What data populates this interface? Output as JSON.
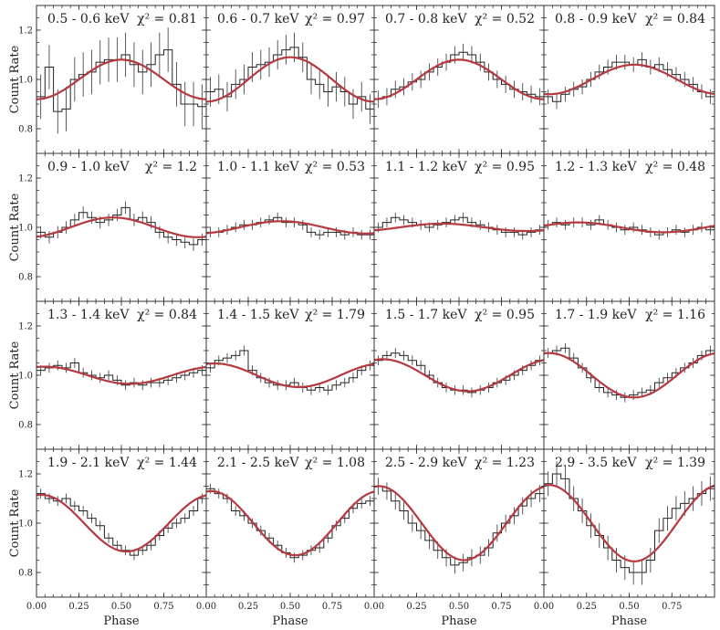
{
  "chart_data": {
    "type": "line",
    "layout": "4x4 grid of panels",
    "xlabel": "Phase",
    "ylabel": "Count Rate",
    "xlim": [
      0,
      1
    ],
    "ylim": [
      0.7,
      1.3
    ],
    "xticks": [
      0.0,
      0.25,
      0.5,
      0.75
    ],
    "xtick_labels": [
      "0.00",
      "0.25",
      "0.50",
      "0.75"
    ],
    "yticks": [
      0.8,
      1.0,
      1.2
    ],
    "ytick_labels": [
      "0.8",
      "1.0",
      "1.2"
    ],
    "colors": {
      "data": "#222222",
      "model": "#b5393f"
    },
    "bins": 20,
    "panels": [
      {
        "label": "0.5 - 0.6 keV",
        "chi": "χ² = 0.81",
        "model": {
          "mean": 1.0,
          "amp": 0.08,
          "phase_peak": 0.5
        },
        "err": 0.09,
        "values": [
          0.93,
          1.05,
          0.87,
          0.88,
          1.0,
          1.02,
          1.03,
          1.07,
          1.08,
          1.08,
          1.1,
          1.06,
          1.03,
          1.06,
          1.1,
          1.12,
          0.98,
          0.9,
          0.9,
          0.89
        ]
      },
      {
        "label": "0.6 - 0.7 keV",
        "chi": "χ² = 0.97",
        "model": {
          "mean": 1.0,
          "amp": 0.09,
          "phase_peak": 0.5
        },
        "err": 0.06,
        "values": [
          0.95,
          0.96,
          0.93,
          0.98,
          1.0,
          1.05,
          1.06,
          1.07,
          1.1,
          1.12,
          1.13,
          1.09,
          1.0,
          0.98,
          0.95,
          0.97,
          0.95,
          0.9,
          0.93,
          0.88
        ]
      },
      {
        "label": "0.7 - 0.8 keV",
        "chi": "χ² = 0.52",
        "model": {
          "mean": 1.0,
          "amp": 0.08,
          "phase_peak": 0.5
        },
        "err": 0.035,
        "values": [
          0.92,
          0.93,
          0.96,
          0.97,
          0.99,
          1.0,
          1.03,
          1.05,
          1.07,
          1.1,
          1.11,
          1.1,
          1.07,
          1.03,
          1.0,
          0.98,
          0.96,
          0.95,
          0.94,
          0.93
        ]
      },
      {
        "label": "0.8 - 0.9 keV",
        "chi": "χ² = 0.84",
        "model": {
          "mean": 1.0,
          "amp": 0.06,
          "phase_peak": 0.53
        },
        "err": 0.03,
        "values": [
          0.93,
          0.91,
          0.94,
          0.96,
          0.97,
          1.0,
          1.03,
          1.05,
          1.07,
          1.07,
          1.06,
          1.08,
          1.05,
          1.06,
          1.04,
          1.02,
          1.0,
          0.98,
          0.95,
          0.93
        ]
      },
      {
        "label": "0.9 - 1.0 keV",
        "chi": "χ² = 1.2",
        "model": {
          "mean": 1.0,
          "amp": 0.04,
          "phase_peak": 0.45
        },
        "err": 0.025,
        "values": [
          0.98,
          0.96,
          0.98,
          1.0,
          1.03,
          1.06,
          1.04,
          1.02,
          1.03,
          1.05,
          1.08,
          1.03,
          1.04,
          1.02,
          0.98,
          0.96,
          0.95,
          0.94,
          0.93,
          0.95
        ]
      },
      {
        "label": "1.0 - 1.1 keV",
        "chi": "χ² = 0.53",
        "model": {
          "mean": 1.0,
          "amp": 0.025,
          "phase_peak": 0.45
        },
        "err": 0.02,
        "values": [
          0.98,
          0.98,
          0.99,
          1.0,
          1.01,
          1.01,
          1.02,
          1.03,
          1.04,
          1.02,
          1.02,
          1.01,
          0.98,
          0.97,
          0.98,
          0.98,
          0.97,
          0.98,
          0.97,
          0.97
        ]
      },
      {
        "label": "1.1 - 1.2 keV",
        "chi": "χ² = 0.95",
        "model": {
          "mean": 1.0,
          "amp": 0.015,
          "phase_peak": 0.4
        },
        "err": 0.02,
        "values": [
          1.0,
          1.02,
          1.04,
          1.03,
          1.02,
          1.01,
          1.0,
          1.01,
          1.02,
          1.03,
          1.04,
          1.02,
          1.01,
          1.0,
          0.99,
          0.98,
          0.98,
          0.97,
          0.98,
          0.99
        ]
      },
      {
        "label": "1.2 - 1.3 keV",
        "chi": "χ² = 0.48",
        "model": {
          "mean": 1.0,
          "amp": 0.02,
          "phase_peak": 0.2
        },
        "err": 0.02,
        "values": [
          1.01,
          1.02,
          1.01,
          1.02,
          1.02,
          1.01,
          1.03,
          1.01,
          1.0,
          0.99,
          1.0,
          0.99,
          0.98,
          0.97,
          0.98,
          0.99,
          0.98,
          0.99,
          1.0,
          0.99
        ]
      },
      {
        "label": "1.3 - 1.4 keV",
        "chi": "χ² = 0.84",
        "model": {
          "mean": 1.0,
          "amp": 0.035,
          "phase_peak": 0.05
        },
        "err": 0.02,
        "values": [
          1.02,
          1.03,
          1.04,
          1.03,
          1.05,
          1.01,
          1.0,
          0.99,
          1.0,
          0.98,
          0.96,
          0.97,
          0.96,
          0.97,
          0.97,
          0.98,
          0.99,
          1.0,
          1.01,
          1.02
        ]
      },
      {
        "label": "1.4 - 1.5 keV",
        "chi": "χ² = 1.79",
        "model": {
          "mean": 1.0,
          "amp": 0.048,
          "phase_peak": 0.05
        },
        "err": 0.02,
        "values": [
          1.03,
          1.06,
          1.07,
          1.08,
          1.1,
          1.02,
          0.99,
          0.97,
          0.96,
          0.96,
          0.97,
          0.95,
          0.94,
          0.95,
          0.94,
          0.96,
          0.97,
          0.99,
          1.02,
          1.04
        ]
      },
      {
        "label": "1.5 - 1.7 keV",
        "chi": "χ² = 0.95",
        "model": {
          "mean": 1.0,
          "amp": 0.065,
          "phase_peak": 0.05
        },
        "err": 0.02,
        "values": [
          1.06,
          1.08,
          1.09,
          1.08,
          1.06,
          1.04,
          1.0,
          0.97,
          0.95,
          0.94,
          0.94,
          0.93,
          0.94,
          0.95,
          0.97,
          0.98,
          1.0,
          1.02,
          1.04,
          1.06
        ]
      },
      {
        "label": "1.7 - 1.9 keV",
        "chi": "χ² = 1.16",
        "model": {
          "mean": 1.0,
          "amp": 0.09,
          "phase_peak": 0.03
        },
        "err": 0.02,
        "values": [
          1.09,
          1.1,
          1.11,
          1.07,
          1.03,
          0.99,
          0.95,
          0.93,
          0.92,
          0.91,
          0.92,
          0.93,
          0.94,
          0.97,
          0.99,
          1.01,
          1.03,
          1.05,
          1.08,
          1.1
        ]
      },
      {
        "label": "1.9 - 2.1 keV",
        "chi": "χ² = 1.44",
        "model": {
          "mean": 1.0,
          "amp": 0.115,
          "phase_peak": 0.03
        },
        "err": 0.02,
        "values": [
          1.12,
          1.1,
          1.09,
          1.1,
          1.07,
          1.05,
          1.02,
          0.99,
          0.94,
          0.91,
          0.89,
          0.87,
          0.89,
          0.91,
          0.95,
          0.98,
          1.0,
          1.02,
          1.05,
          1.1
        ]
      },
      {
        "label": "2.1 - 2.5 keV",
        "chi": "χ² = 1.08",
        "model": {
          "mean": 1.0,
          "amp": 0.13,
          "phase_peak": 0.03
        },
        "err": 0.02,
        "values": [
          1.14,
          1.12,
          1.1,
          1.05,
          1.03,
          1.0,
          0.97,
          0.94,
          0.91,
          0.88,
          0.86,
          0.87,
          0.89,
          0.9,
          0.94,
          0.99,
          1.02,
          1.06,
          1.08,
          1.09
        ]
      },
      {
        "label": "2.5 - 2.9 keV",
        "chi": "χ² = 1.23",
        "model": {
          "mean": 1.0,
          "amp": 0.15,
          "phase_peak": 0.03
        },
        "err": 0.035,
        "values": [
          1.15,
          1.13,
          1.09,
          1.05,
          1.0,
          0.97,
          0.93,
          0.89,
          0.86,
          0.83,
          0.84,
          0.86,
          0.87,
          0.9,
          0.96,
          1.0,
          1.03,
          1.07,
          1.1,
          1.12
        ]
      },
      {
        "label": "2.9 - 3.5 keV",
        "chi": "χ² = 1.39",
        "model": {
          "mean": 1.0,
          "amp": 0.155,
          "phase_peak": 0.03
        },
        "err": 0.05,
        "values": [
          1.16,
          1.2,
          1.18,
          1.1,
          1.05,
          0.99,
          0.95,
          0.9,
          0.85,
          0.82,
          0.8,
          0.8,
          0.85,
          0.97,
          1.02,
          1.06,
          1.08,
          1.1,
          1.12,
          1.14
        ]
      }
    ]
  }
}
